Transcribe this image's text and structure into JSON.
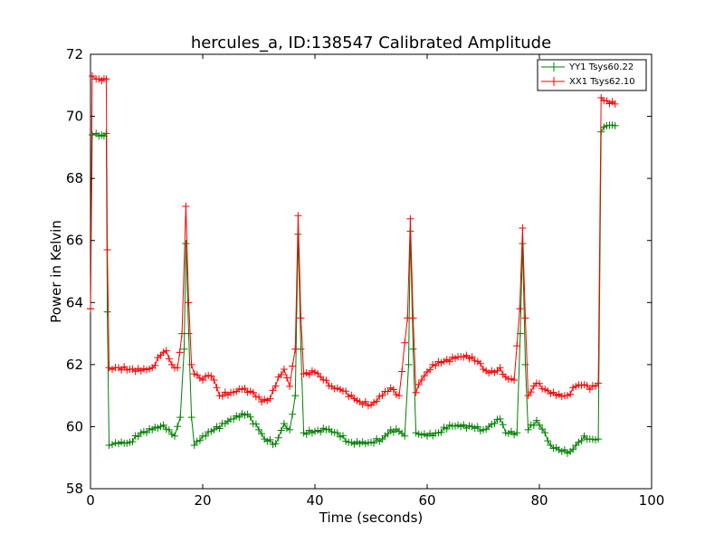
{
  "chart_data": {
    "type": "line",
    "title": "hercules_a, ID:138547 Calibrated Amplitude",
    "xlabel": "Time (seconds)",
    "ylabel": "Power in Kelvin",
    "xlim": [
      0,
      100
    ],
    "ylim": [
      58,
      72
    ],
    "xticks": [
      0,
      20,
      40,
      60,
      80,
      100
    ],
    "yticks": [
      58,
      60,
      62,
      64,
      66,
      68,
      70,
      72
    ],
    "grid": false,
    "legend_position": "top-right",
    "marker": "+",
    "series": [
      {
        "name": "YY1 Tsys60.22",
        "color": "#008000",
        "points": [
          [
            0,
            63.8
          ],
          [
            0.3,
            69.4
          ],
          [
            1,
            69.45
          ],
          [
            2,
            69.4
          ],
          [
            2.8,
            69.45
          ],
          [
            3,
            63.7
          ],
          [
            3.3,
            59.4
          ],
          [
            5,
            59.45
          ],
          [
            7,
            59.5
          ],
          [
            9,
            59.8
          ],
          [
            11,
            59.9
          ],
          [
            13,
            60.05
          ],
          [
            14,
            59.9
          ],
          [
            15,
            59.7
          ],
          [
            16,
            60.3
          ],
          [
            16.7,
            62.5
          ],
          [
            17,
            65.9
          ],
          [
            17.5,
            63.0
          ],
          [
            18,
            60.3
          ],
          [
            18.5,
            59.4
          ],
          [
            20,
            59.7
          ],
          [
            22,
            59.9
          ],
          [
            24,
            60.1
          ],
          [
            26,
            60.35
          ],
          [
            28,
            60.4
          ],
          [
            30,
            59.9
          ],
          [
            31,
            59.6
          ],
          [
            33,
            59.45
          ],
          [
            34.5,
            60.1
          ],
          [
            35.5,
            59.9
          ],
          [
            36.5,
            61.0
          ],
          [
            37,
            66.2
          ],
          [
            37.5,
            62.5
          ],
          [
            38,
            59.8
          ],
          [
            40,
            59.85
          ],
          [
            42,
            59.9
          ],
          [
            44,
            59.8
          ],
          [
            46,
            59.5
          ],
          [
            48,
            59.45
          ],
          [
            50,
            59.5
          ],
          [
            52,
            59.6
          ],
          [
            53.5,
            59.9
          ],
          [
            55,
            59.85
          ],
          [
            56,
            59.7
          ],
          [
            56.7,
            62.0
          ],
          [
            57,
            66.3
          ],
          [
            57.5,
            62.5
          ],
          [
            58,
            59.8
          ],
          [
            60,
            59.7
          ],
          [
            62,
            59.8
          ],
          [
            64,
            60.05
          ],
          [
            66,
            60.0
          ],
          [
            68,
            60.0
          ],
          [
            70,
            59.9
          ],
          [
            72,
            60.1
          ],
          [
            73,
            60.25
          ],
          [
            74,
            59.8
          ],
          [
            76,
            59.8
          ],
          [
            76.6,
            63.0
          ],
          [
            77,
            65.9
          ],
          [
            77.5,
            62.0
          ],
          [
            78,
            59.9
          ],
          [
            79.5,
            60.2
          ],
          [
            81,
            59.8
          ],
          [
            82,
            59.4
          ],
          [
            84,
            59.2
          ],
          [
            85.5,
            59.2
          ],
          [
            87,
            59.5
          ],
          [
            88,
            59.7
          ],
          [
            89,
            59.6
          ],
          [
            90.5,
            59.6
          ],
          [
            91,
            69.5
          ],
          [
            92,
            69.7
          ],
          [
            93.5,
            69.7
          ]
        ]
      },
      {
        "name": "XX1 Tsys62.10",
        "color": "#ff0000",
        "points": [
          [
            0,
            63.8
          ],
          [
            0.3,
            71.3
          ],
          [
            1,
            71.2
          ],
          [
            2,
            71.15
          ],
          [
            2.8,
            71.2
          ],
          [
            3,
            65.7
          ],
          [
            3.3,
            61.9
          ],
          [
            5,
            61.9
          ],
          [
            7,
            61.85
          ],
          [
            9,
            61.8
          ],
          [
            11,
            61.9
          ],
          [
            12.5,
            62.3
          ],
          [
            13.5,
            62.45
          ],
          [
            14.5,
            62.0
          ],
          [
            15.5,
            61.9
          ],
          [
            16.3,
            63.0
          ],
          [
            17,
            67.1
          ],
          [
            17.5,
            64.0
          ],
          [
            18,
            62.0
          ],
          [
            18.5,
            61.7
          ],
          [
            20,
            61.5
          ],
          [
            21,
            61.65
          ],
          [
            22,
            61.5
          ],
          [
            23,
            61.0
          ],
          [
            25,
            61.1
          ],
          [
            27,
            61.2
          ],
          [
            29,
            61.1
          ],
          [
            30.5,
            60.8
          ],
          [
            32,
            60.9
          ],
          [
            33.5,
            61.6
          ],
          [
            34.5,
            61.85
          ],
          [
            35.5,
            61.3
          ],
          [
            36.5,
            62.5
          ],
          [
            37,
            66.8
          ],
          [
            37.5,
            63.5
          ],
          [
            38,
            61.7
          ],
          [
            40,
            61.75
          ],
          [
            41,
            61.6
          ],
          [
            43,
            61.3
          ],
          [
            45,
            61.15
          ],
          [
            47,
            60.9
          ],
          [
            48,
            60.8
          ],
          [
            50,
            60.7
          ],
          [
            52,
            61.0
          ],
          [
            53.5,
            61.25
          ],
          [
            55,
            61.0
          ],
          [
            56.5,
            63.5
          ],
          [
            57,
            66.7
          ],
          [
            57.5,
            63.5
          ],
          [
            58,
            61.1
          ],
          [
            59,
            61.5
          ],
          [
            61,
            62.0
          ],
          [
            63,
            62.1
          ],
          [
            65,
            62.2
          ],
          [
            67,
            62.3
          ],
          [
            69,
            62.1
          ],
          [
            70.5,
            61.8
          ],
          [
            72,
            61.75
          ],
          [
            73,
            61.9
          ],
          [
            74,
            61.6
          ],
          [
            75.5,
            61.5
          ],
          [
            76.5,
            63.8
          ],
          [
            77,
            66.4
          ],
          [
            77.5,
            63.5
          ],
          [
            78,
            61.0
          ],
          [
            79.5,
            61.4
          ],
          [
            81,
            61.2
          ],
          [
            83,
            61.0
          ],
          [
            85,
            61.0
          ],
          [
            86.5,
            61.3
          ],
          [
            88,
            61.35
          ],
          [
            89,
            61.2
          ],
          [
            90.5,
            61.4
          ],
          [
            91,
            70.6
          ],
          [
            92,
            70.5
          ],
          [
            93.5,
            70.4
          ]
        ]
      }
    ]
  }
}
